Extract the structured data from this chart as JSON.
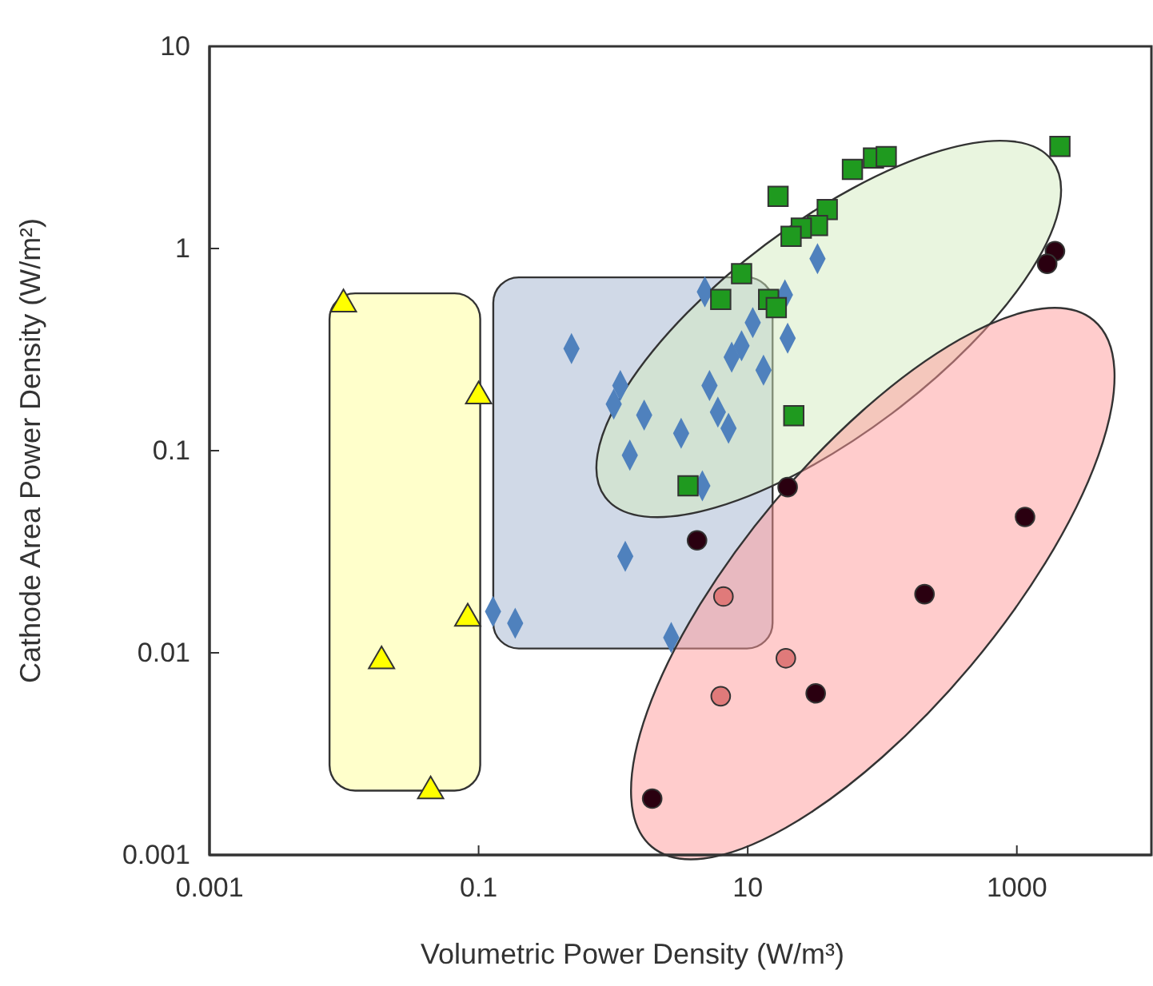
{
  "chart_data": {
    "type": "scatter",
    "xlabel": "Volumetric Power Density (W/m³)",
    "ylabel": "Cathode Area Power Density (W/m²)",
    "log": "xy",
    "xlim": [
      0.001,
      10000
    ],
    "xticks": [
      0.001,
      0.1,
      10,
      1000
    ],
    "ylim": [
      0.001,
      10
    ],
    "yticks": [
      0.001,
      0.01,
      0.1,
      1,
      10
    ],
    "series": [
      {
        "color": "#ffff00",
        "marker": "triangle",
        "x": [
          0.0099,
          0.1,
          0.019,
          0.083,
          0.044
        ],
        "values": [
          0.53,
          0.186,
          0.0091,
          0.0148,
          0.00207
        ]
      },
      {
        "color": "#4f81bd",
        "marker": "diamond",
        "x": [
          0.49,
          1.13,
          1.01,
          1.7,
          1.33,
          1.23,
          0.128,
          0.187,
          2.7,
          4.6,
          4.8,
          10.9,
          9.0,
          7.6,
          13.1,
          19.8,
          18.9,
          5.2,
          6.0,
          7.2,
          3.2,
          33
        ],
        "values": [
          0.32,
          0.21,
          0.17,
          0.15,
          0.095,
          0.03,
          0.016,
          0.014,
          0.0119,
          0.067,
          0.61,
          0.43,
          0.33,
          0.29,
          0.25,
          0.36,
          0.59,
          0.21,
          0.155,
          0.129,
          0.122,
          0.89
        ]
      },
      {
        "color": "#1f9a1f",
        "marker": "square",
        "x": [
          16.8,
          60,
          86,
          107,
          2090,
          39,
          33,
          25,
          21,
          9.0,
          6.3,
          14.3,
          16.3,
          22,
          3.6
        ],
        "values": [
          1.81,
          2.46,
          2.8,
          2.85,
          3.2,
          1.56,
          1.3,
          1.26,
          1.15,
          0.75,
          0.56,
          0.56,
          0.51,
          0.149,
          0.067
        ]
      },
      {
        "color": "#2a0010",
        "marker": "circle",
        "x": [
          1920,
          1680,
          19.8,
          4.2,
          1150,
          206,
          32,
          1.95
        ],
        "values": [
          0.97,
          0.84,
          0.066,
          0.036,
          0.047,
          0.0195,
          0.0063,
          0.0019
        ]
      },
      {
        "color": "#e07a7a",
        "marker": "circle",
        "x": [
          6.6,
          19.2,
          6.3
        ],
        "values": [
          0.019,
          0.0094,
          0.0061
        ]
      }
    ]
  }
}
